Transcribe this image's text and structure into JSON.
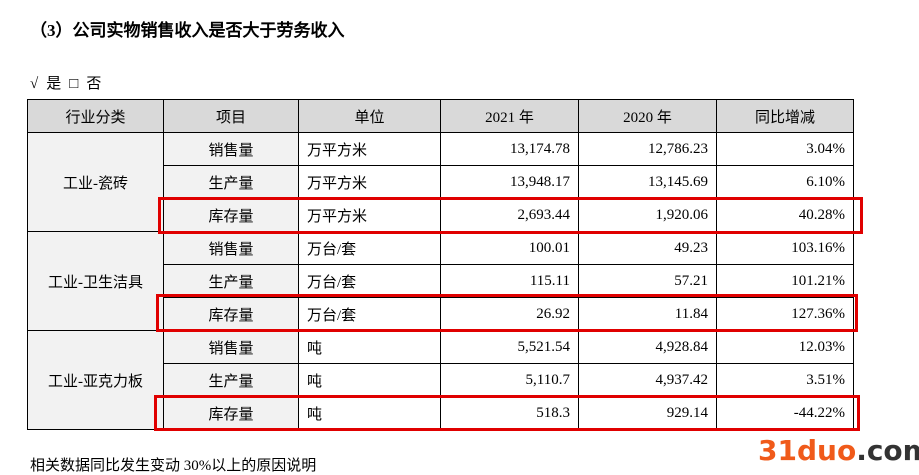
{
  "heading": "（3）公司实物销售收入是否大于劳务收入",
  "options": {
    "checked": "√",
    "yes": "是",
    "unchecked": "□",
    "no": "否"
  },
  "table": {
    "header": [
      "行业分类",
      "项目",
      "单位",
      "2021 年",
      "2020 年",
      "同比增减"
    ],
    "groups": [
      {
        "category": "工业-瓷砖",
        "rows": [
          [
            "销售量",
            "万平方米",
            "13,174.78",
            "12,786.23",
            "3.04%"
          ],
          [
            "生产量",
            "万平方米",
            "13,948.17",
            "13,145.69",
            "6.10%"
          ],
          [
            "库存量",
            "万平方米",
            "2,693.44",
            "1,920.06",
            "40.28%"
          ]
        ]
      },
      {
        "category": "工业-卫生洁具",
        "rows": [
          [
            "销售量",
            "万台/套",
            "100.01",
            "49.23",
            "103.16%"
          ],
          [
            "生产量",
            "万台/套",
            "115.11",
            "57.21",
            "101.21%"
          ],
          [
            "库存量",
            "万台/套",
            "26.92",
            "11.84",
            "127.36%"
          ]
        ]
      },
      {
        "category": "工业-亚克力板",
        "rows": [
          [
            "销售量",
            "吨",
            "5,521.54",
            "4,928.84",
            "12.03%"
          ],
          [
            "生产量",
            "吨",
            "5,110.7",
            "4,937.42",
            "3.51%"
          ],
          [
            "库存量",
            "吨",
            "518.3",
            "929.14",
            "-44.22%"
          ]
        ]
      }
    ]
  },
  "footer": "相关数据同比发生变动 30%以上的原因说明",
  "watermark": {
    "number": "31duo",
    "domain": ".com"
  }
}
